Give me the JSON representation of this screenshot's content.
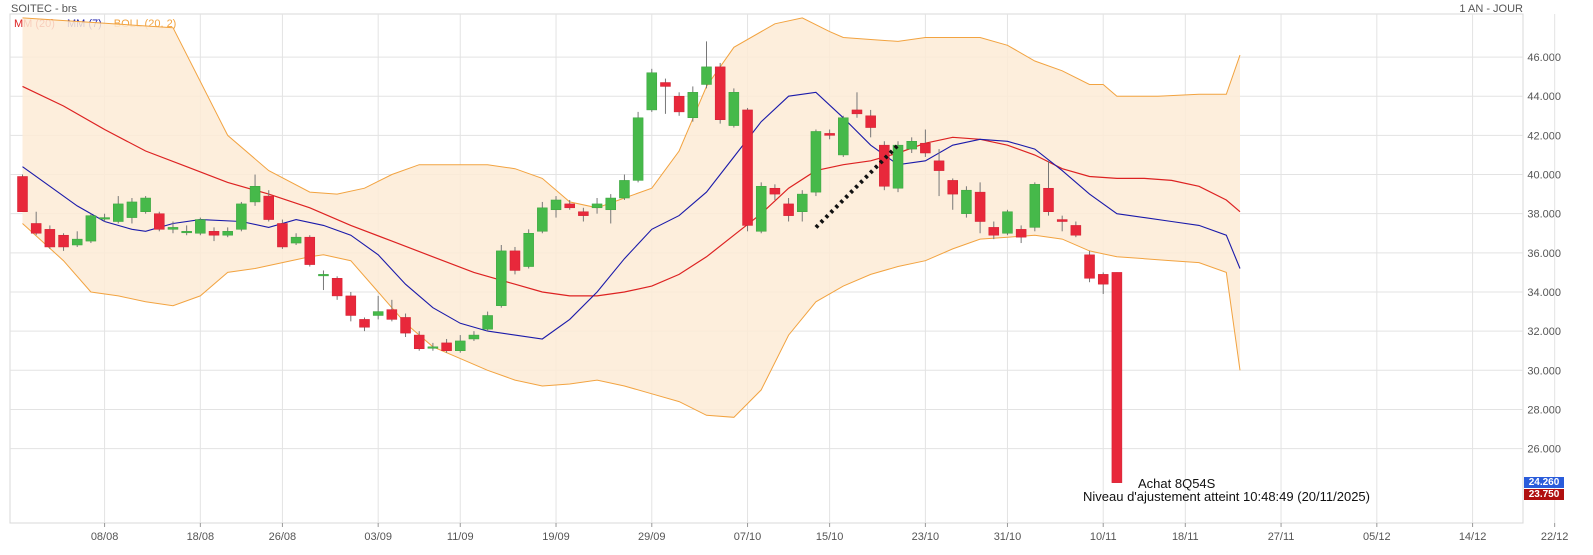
{
  "header": {
    "title": "SOITEC - brs",
    "period": "1 AN - JOUR"
  },
  "legend": [
    {
      "label": "MM (20)",
      "color": "#dd2222"
    },
    {
      "label": "MM (7)",
      "color": "#1a1aaa"
    },
    {
      "label": "BOLL (20, 2)",
      "color": "#f2a340"
    }
  ],
  "annotations": {
    "line1": "Achat 8Q54S",
    "line2": "Niveau d'ajustement atteint 10:48:49 (20/11/2025)"
  },
  "price_tags": [
    {
      "label": "24.260",
      "color": "#2a5cdb",
      "value": 24.26
    },
    {
      "label": "23.750",
      "color": "#b01010",
      "value": 23.75
    }
  ],
  "chart_data": {
    "type": "candlestick",
    "title": "SOITEC - brs",
    "ylim": [
      22.2,
      48.2
    ],
    "yticks": [
      "26.000",
      "28.000",
      "30.000",
      "32.000",
      "34.000",
      "36.000",
      "38.000",
      "40.000",
      "42.000",
      "44.000",
      "46.000"
    ],
    "ytick_values": [
      26,
      28,
      30,
      32,
      34,
      36,
      38,
      40,
      42,
      44,
      46
    ],
    "xticks": [
      "08/08",
      "18/08",
      "26/08",
      "03/09",
      "11/09",
      "19/09",
      "29/09",
      "07/10",
      "15/10",
      "23/10",
      "31/10",
      "10/11",
      "18/11",
      "27/11",
      "05/12",
      "14/12",
      "22/12"
    ],
    "xtick_index": [
      6,
      13,
      19,
      26,
      32,
      39,
      46,
      53,
      59,
      66,
      72,
      79,
      85,
      92,
      99,
      106,
      112
    ],
    "candles": [
      [
        39.9,
        38.1,
        40.0,
        38.1
      ],
      [
        37.5,
        37.0,
        38.1,
        36.9
      ],
      [
        37.2,
        36.3,
        37.4,
        36.2
      ],
      [
        36.9,
        36.3,
        37.0,
        36.1
      ],
      [
        36.4,
        36.7,
        37.1,
        36.3
      ],
      [
        36.6,
        37.9,
        38.0,
        36.5
      ],
      [
        37.8,
        37.8,
        38.0,
        37.6
      ],
      [
        37.6,
        38.5,
        38.9,
        37.5
      ],
      [
        37.8,
        38.6,
        38.8,
        37.5
      ],
      [
        38.1,
        38.8,
        38.9,
        38.0
      ],
      [
        38.0,
        37.2,
        38.1,
        37.1
      ],
      [
        37.2,
        37.3,
        37.6,
        37.0
      ],
      [
        37.1,
        37.1,
        37.4,
        36.9
      ],
      [
        37.0,
        37.7,
        37.8,
        36.9
      ],
      [
        37.1,
        36.9,
        37.3,
        36.6
      ],
      [
        36.9,
        37.1,
        37.3,
        36.8
      ],
      [
        37.2,
        38.5,
        38.6,
        37.1
      ],
      [
        38.6,
        39.4,
        40.0,
        38.4
      ],
      [
        38.9,
        37.7,
        39.2,
        37.6
      ],
      [
        37.5,
        36.3,
        37.7,
        36.2
      ],
      [
        36.5,
        36.8,
        37.0,
        36.4
      ],
      [
        36.8,
        35.4,
        36.9,
        35.3
      ],
      [
        34.9,
        34.9,
        35.1,
        34.1
      ],
      [
        34.7,
        33.8,
        34.8,
        33.6
      ],
      [
        33.8,
        32.8,
        34.0,
        32.5
      ],
      [
        32.6,
        32.2,
        32.7,
        32.0
      ],
      [
        32.8,
        33.0,
        33.8,
        32.6
      ],
      [
        33.1,
        32.6,
        33.6,
        32.5
      ],
      [
        32.7,
        31.9,
        32.9,
        31.7
      ],
      [
        31.8,
        31.1,
        32.0,
        31.0
      ],
      [
        31.2,
        31.2,
        31.4,
        31.0
      ],
      [
        31.4,
        31.0,
        31.6,
        30.9
      ],
      [
        31.0,
        31.5,
        31.8,
        30.9
      ],
      [
        31.6,
        31.8,
        32.0,
        31.5
      ],
      [
        32.1,
        32.8,
        33.0,
        32.0
      ],
      [
        33.3,
        36.1,
        36.4,
        33.2
      ],
      [
        36.1,
        35.1,
        36.3,
        34.9
      ],
      [
        35.3,
        37.0,
        37.2,
        35.2
      ],
      [
        37.1,
        38.3,
        38.6,
        37.0
      ],
      [
        38.2,
        38.7,
        38.9,
        37.8
      ],
      [
        38.5,
        38.3,
        38.7,
        38.2
      ],
      [
        38.1,
        37.9,
        38.3,
        37.6
      ],
      [
        38.3,
        38.5,
        38.8,
        38.0
      ],
      [
        38.2,
        38.8,
        39.0,
        37.5
      ],
      [
        38.8,
        39.7,
        40.0,
        38.7
      ],
      [
        39.7,
        42.9,
        43.2,
        39.6
      ],
      [
        43.3,
        45.2,
        45.4,
        43.2
      ],
      [
        44.7,
        44.5,
        44.9,
        43.1
      ],
      [
        44.0,
        43.2,
        44.2,
        43.0
      ],
      [
        42.9,
        44.2,
        44.5,
        42.7
      ],
      [
        44.6,
        45.5,
        46.8,
        44.4
      ],
      [
        45.5,
        42.8,
        45.7,
        42.6
      ],
      [
        42.5,
        44.2,
        44.4,
        42.4
      ],
      [
        43.3,
        37.4,
        43.4,
        37.1
      ],
      [
        37.1,
        39.4,
        39.6,
        37.0
      ],
      [
        39.3,
        39.0,
        39.5,
        38.7
      ],
      [
        38.5,
        37.9,
        38.8,
        37.6
      ],
      [
        38.1,
        39.0,
        39.2,
        37.6
      ],
      [
        39.1,
        42.2,
        42.3,
        38.9
      ],
      [
        42.1,
        42.0,
        42.3,
        41.8
      ],
      [
        41.0,
        42.9,
        43.0,
        40.9
      ],
      [
        43.3,
        43.1,
        44.2,
        42.9
      ],
      [
        43.0,
        42.4,
        43.3,
        41.9
      ],
      [
        41.5,
        39.4,
        41.7,
        39.2
      ],
      [
        39.3,
        41.5,
        41.7,
        39.1
      ],
      [
        41.3,
        41.7,
        41.9,
        41.1
      ],
      [
        41.6,
        41.1,
        42.3,
        40.9
      ],
      [
        40.7,
        40.2,
        41.3,
        38.9
      ],
      [
        39.7,
        39.0,
        39.8,
        38.2
      ],
      [
        38.0,
        39.2,
        39.4,
        37.8
      ],
      [
        39.1,
        37.6,
        39.6,
        37.0
      ],
      [
        37.3,
        36.9,
        37.6,
        36.7
      ],
      [
        37.0,
        38.1,
        38.2,
        36.9
      ],
      [
        37.2,
        36.8,
        37.4,
        36.5
      ],
      [
        37.3,
        39.5,
        39.6,
        37.1
      ],
      [
        39.3,
        38.1,
        40.7,
        37.9
      ],
      [
        37.7,
        37.6,
        37.9,
        37.1
      ],
      [
        37.4,
        36.9,
        37.6,
        36.8
      ],
      [
        35.9,
        34.7,
        36.1,
        34.5
      ],
      [
        34.9,
        34.4,
        35.0,
        33.9
      ],
      [
        35.0,
        24.26,
        35.0,
        24.26
      ]
    ],
    "ma20": [
      [
        0,
        44.5
      ],
      [
        3,
        43.5
      ],
      [
        6,
        42.3
      ],
      [
        9,
        41.2
      ],
      [
        12,
        40.4
      ],
      [
        15,
        39.6
      ],
      [
        18,
        39.0
      ],
      [
        21,
        38.3
      ],
      [
        24,
        37.4
      ],
      [
        27,
        36.6
      ],
      [
        30,
        35.8
      ],
      [
        33,
        35.0
      ],
      [
        36,
        34.4
      ],
      [
        38,
        34.0
      ],
      [
        40,
        33.8
      ],
      [
        42,
        33.8
      ],
      [
        44,
        34.0
      ],
      [
        46,
        34.3
      ],
      [
        48,
        34.9
      ],
      [
        50,
        35.8
      ],
      [
        52,
        36.9
      ],
      [
        54,
        38.0
      ],
      [
        56,
        39.3
      ],
      [
        58,
        40.2
      ],
      [
        60,
        40.5
      ],
      [
        62,
        40.7
      ],
      [
        64,
        41.1
      ],
      [
        66,
        41.6
      ],
      [
        68,
        41.9
      ],
      [
        70,
        41.8
      ],
      [
        72,
        41.5
      ],
      [
        74,
        41.0
      ],
      [
        76,
        40.3
      ],
      [
        78,
        39.9
      ],
      [
        80,
        39.8
      ],
      [
        82,
        39.8
      ],
      [
        84,
        39.7
      ],
      [
        86,
        39.4
      ],
      [
        88,
        38.7
      ],
      [
        89,
        38.1
      ]
    ],
    "ma7": [
      [
        0,
        40.4
      ],
      [
        2,
        39.4
      ],
      [
        4,
        38.4
      ],
      [
        6,
        37.6
      ],
      [
        8,
        37.2
      ],
      [
        9,
        37.1
      ],
      [
        11,
        37.5
      ],
      [
        13,
        37.7
      ],
      [
        16,
        37.6
      ],
      [
        18,
        37.3
      ],
      [
        20,
        37.7
      ],
      [
        22,
        37.4
      ],
      [
        24,
        36.9
      ],
      [
        26,
        35.9
      ],
      [
        28,
        34.4
      ],
      [
        30,
        33.2
      ],
      [
        32,
        32.4
      ],
      [
        34,
        32.0
      ],
      [
        36,
        31.8
      ],
      [
        38,
        31.6
      ],
      [
        40,
        32.6
      ],
      [
        42,
        34.0
      ],
      [
        44,
        35.7
      ],
      [
        46,
        37.2
      ],
      [
        48,
        37.9
      ],
      [
        50,
        39.1
      ],
      [
        52,
        40.9
      ],
      [
        54,
        42.7
      ],
      [
        56,
        44.0
      ],
      [
        58,
        44.2
      ],
      [
        60,
        42.9
      ],
      [
        62,
        41.5
      ],
      [
        64,
        40.5
      ],
      [
        66,
        40.7
      ],
      [
        68,
        41.5
      ],
      [
        70,
        41.8
      ],
      [
        72,
        41.7
      ],
      [
        74,
        41.3
      ],
      [
        76,
        40.2
      ],
      [
        78,
        39.0
      ],
      [
        80,
        38.0
      ],
      [
        82,
        37.8
      ],
      [
        84,
        37.6
      ],
      [
        86,
        37.4
      ],
      [
        88,
        36.9
      ],
      [
        89,
        35.2
      ]
    ],
    "boll_upper": [
      [
        0,
        48.0
      ],
      [
        11,
        47.5
      ],
      [
        15,
        42.0
      ],
      [
        18,
        40.2
      ],
      [
        21,
        39.1
      ],
      [
        23,
        39.0
      ],
      [
        25,
        39.3
      ],
      [
        27,
        40.0
      ],
      [
        29,
        40.5
      ],
      [
        32,
        40.5
      ],
      [
        34,
        40.5
      ],
      [
        36,
        40.3
      ],
      [
        38,
        39.8
      ],
      [
        40,
        38.6
      ],
      [
        42,
        38.3
      ],
      [
        44,
        38.8
      ],
      [
        46,
        39.3
      ],
      [
        48,
        41.2
      ],
      [
        50,
        44.5
      ],
      [
        52,
        46.5
      ],
      [
        55,
        47.7
      ],
      [
        57,
        48.0
      ],
      [
        59,
        47.3
      ],
      [
        60,
        47.0
      ],
      [
        62,
        46.9
      ],
      [
        64,
        46.8
      ],
      [
        66,
        47.0
      ],
      [
        70,
        47.0
      ],
      [
        72,
        46.6
      ],
      [
        74,
        45.8
      ],
      [
        76,
        45.3
      ],
      [
        78,
        44.6
      ],
      [
        79,
        44.6
      ],
      [
        80,
        44.0
      ],
      [
        83,
        44.0
      ],
      [
        86,
        44.1
      ],
      [
        88,
        44.1
      ],
      [
        89,
        46.1
      ]
    ],
    "boll_lower": [
      [
        0,
        37.5
      ],
      [
        3,
        35.6
      ],
      [
        5,
        34.0
      ],
      [
        7,
        33.8
      ],
      [
        9,
        33.5
      ],
      [
        11,
        33.3
      ],
      [
        13,
        33.8
      ],
      [
        15,
        35.0
      ],
      [
        17,
        35.2
      ],
      [
        19,
        35.5
      ],
      [
        21,
        35.8
      ],
      [
        22,
        35.9
      ],
      [
        24,
        35.6
      ],
      [
        26,
        34.0
      ],
      [
        28,
        32.4
      ],
      [
        30,
        31.2
      ],
      [
        32,
        30.6
      ],
      [
        34,
        30.0
      ],
      [
        36,
        29.5
      ],
      [
        38,
        29.2
      ],
      [
        40,
        29.3
      ],
      [
        42,
        29.5
      ],
      [
        44,
        29.2
      ],
      [
        46,
        28.8
      ],
      [
        48,
        28.4
      ],
      [
        50,
        27.7
      ],
      [
        52,
        27.6
      ],
      [
        54,
        29.0
      ],
      [
        56,
        31.8
      ],
      [
        58,
        33.5
      ],
      [
        60,
        34.3
      ],
      [
        62,
        34.9
      ],
      [
        64,
        35.3
      ],
      [
        66,
        35.6
      ],
      [
        68,
        36.2
      ],
      [
        70,
        36.7
      ],
      [
        72,
        36.8
      ],
      [
        74,
        36.9
      ],
      [
        76,
        36.7
      ],
      [
        78,
        36.1
      ],
      [
        80,
        35.8
      ],
      [
        82,
        35.7
      ],
      [
        84,
        35.6
      ],
      [
        86,
        35.5
      ],
      [
        88,
        35.0
      ],
      [
        89,
        30.0
      ]
    ],
    "trend_line": [
      [
        58,
        37.3
      ],
      [
        64,
        41.5
      ]
    ]
  }
}
